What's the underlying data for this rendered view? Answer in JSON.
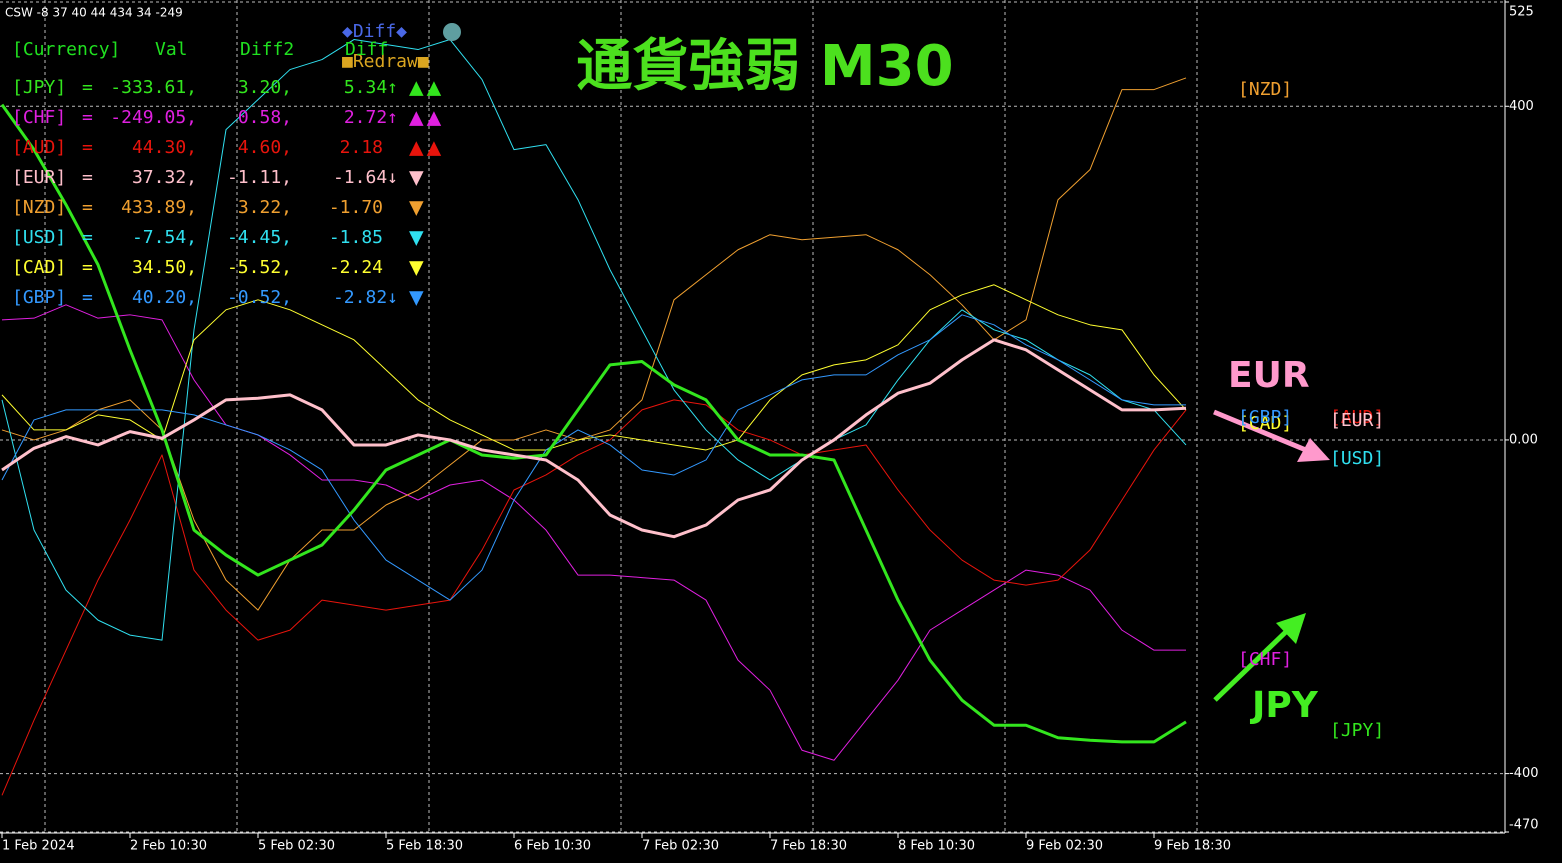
{
  "indicator_label": "CSW -8 37 40 44 434 34 -249",
  "controls": {
    "diff_button": "◆Diff◆",
    "redraw_button": "■Redraw■"
  },
  "table": {
    "header": [
      "[Currency]",
      "Val",
      "Diff2",
      "Diff"
    ],
    "rows": [
      [
        "=",
        "-333.61,",
        "3.20,",
        "5.34↑",
        "▲▲"
      ],
      [
        "=",
        "-249.05,",
        "0.58,",
        "2.72↑",
        "▲▲"
      ],
      [
        "=",
        "44.30,",
        "4.60,",
        "2.18",
        "▲▲"
      ],
      [
        "=",
        "37.32,",
        "-1.11,",
        "-1.64↓",
        "▼"
      ],
      [
        "=",
        "433.89,",
        "3.22,",
        "-1.70",
        "▼"
      ],
      [
        "=",
        "-7.54,",
        "-4.45,",
        "-1.85",
        "▼"
      ],
      [
        "=",
        "34.50,",
        "-5.52,",
        "-2.24",
        "▼"
      ],
      [
        "=",
        "40.20,",
        "-0.52,",
        "-2.82↓",
        "▼"
      ]
    ]
  },
  "chart_data": {
    "type": "line",
    "title": "通貨強弱 M30",
    "categories": [
      "1 Feb 2024",
      null,
      null,
      null,
      "2 Feb 10:30",
      null,
      null,
      null,
      "5 Feb 02:30",
      null,
      null,
      null,
      "5 Feb 18:30",
      null,
      null,
      null,
      "6 Feb 10:30",
      null,
      null,
      null,
      "7 Feb 02:30",
      null,
      null,
      null,
      "7 Feb 18:30",
      null,
      null,
      null,
      "8 Feb 10:30",
      null,
      null,
      null,
      "9 Feb 02:30",
      null,
      null,
      null,
      "9 Feb 18:30",
      null
    ],
    "ylim": [
      -470,
      525
    ],
    "yticks": [
      525,
      400,
      {
        "value": 0,
        "label": "0.00"
      },
      -400,
      -470
    ],
    "grid": true,
    "annotations": [
      {
        "text": "EUR",
        "color": "#ff99cc"
      },
      {
        "text": "JPY",
        "color": "#44ee22"
      }
    ],
    "series": [
      {
        "name": "[JPY]",
        "color": "#33e61e",
        "width": 3,
        "values": [
          402,
          348,
          282,
          210,
          108,
          12,
          -108,
          -138,
          -162,
          -144,
          -126,
          -84,
          -36,
          -18,
          0,
          -18,
          -22,
          -18,
          36,
          90,
          94,
          66,
          48,
          0,
          -18,
          -18,
          -24,
          -108,
          -192,
          -264,
          -312,
          -342,
          -342,
          -357,
          -360,
          -362,
          -362,
          -338
        ]
      },
      {
        "name": "[CHF]",
        "color": "#e020e0",
        "width": 1,
        "values": [
          144,
          146,
          162,
          146,
          150,
          144,
          72,
          18,
          6,
          -18,
          -48,
          -48,
          -54,
          -72,
          -54,
          -48,
          -72,
          -108,
          -162,
          -162,
          -165,
          -168,
          -192,
          -264,
          -300,
          -372,
          -384,
          -336,
          -288,
          -228,
          -204,
          -180,
          -156,
          -162,
          -180,
          -228,
          -252,
          -252
        ]
      },
      {
        "name": "[AUD]",
        "color": "#e8140c",
        "width": 1,
        "values": [
          -426,
          -336,
          -252,
          -168,
          -96,
          -18,
          -156,
          -204,
          -240,
          -228,
          -192,
          -198,
          -204,
          -198,
          -192,
          -132,
          -60,
          -42,
          -18,
          0,
          36,
          48,
          42,
          12,
          0,
          -18,
          -12,
          -6,
          -60,
          -108,
          -144,
          -168,
          -174,
          -168,
          -132,
          -72,
          -12,
          36
        ]
      },
      {
        "name": "[EUR]",
        "color": "#ffc0cb",
        "width": 3,
        "values": [
          -36,
          -10,
          4,
          -6,
          10,
          2,
          24,
          48,
          50,
          54,
          36,
          -6,
          -6,
          6,
          0,
          -12,
          -18,
          -24,
          -48,
          -90,
          -108,
          -116,
          -102,
          -72,
          -60,
          -24,
          0,
          30,
          56,
          68,
          96,
          120,
          108,
          84,
          60,
          36,
          36,
          38
        ]
      },
      {
        "name": "[NZD]",
        "color": "#f0a030",
        "width": 1,
        "values": [
          12,
          0,
          12,
          36,
          48,
          12,
          -96,
          -168,
          -204,
          -144,
          -108,
          -108,
          -78,
          -60,
          -30,
          0,
          0,
          12,
          0,
          12,
          48,
          168,
          198,
          228,
          246,
          240,
          243,
          246,
          228,
          198,
          162,
          120,
          144,
          288,
          324,
          420,
          420,
          434
        ]
      },
      {
        "name": "[USD]",
        "color": "#30e0f0",
        "width": 1,
        "values": [
          48,
          -108,
          -180,
          -216,
          -234,
          -240,
          132,
          372,
          408,
          444,
          456,
          480,
          474,
          468,
          480,
          432,
          348,
          354,
          288,
          204,
          132,
          60,
          12,
          -24,
          -48,
          -24,
          0,
          18,
          72,
          120,
          156,
          132,
          120,
          96,
          78,
          48,
          36,
          -6
        ]
      },
      {
        "name": "[CAD]",
        "color": "#ffff30",
        "width": 1,
        "values": [
          54,
          12,
          12,
          30,
          24,
          0,
          120,
          156,
          168,
          156,
          138,
          120,
          84,
          48,
          24,
          6,
          -12,
          -12,
          0,
          6,
          0,
          -6,
          -12,
          0,
          48,
          78,
          90,
          96,
          114,
          156,
          174,
          186,
          168,
          150,
          138,
          132,
          78,
          36
        ]
      },
      {
        "name": "[GBP]",
        "color": "#3399ff",
        "width": 1,
        "values": [
          -48,
          24,
          36,
          36,
          36,
          36,
          30,
          18,
          6,
          -12,
          -36,
          -96,
          -144,
          -168,
          -192,
          -156,
          -72,
          -12,
          12,
          -6,
          -36,
          -42,
          -24,
          36,
          54,
          72,
          78,
          78,
          102,
          120,
          150,
          138,
          114,
          96,
          72,
          48,
          42,
          42
        ]
      }
    ]
  }
}
